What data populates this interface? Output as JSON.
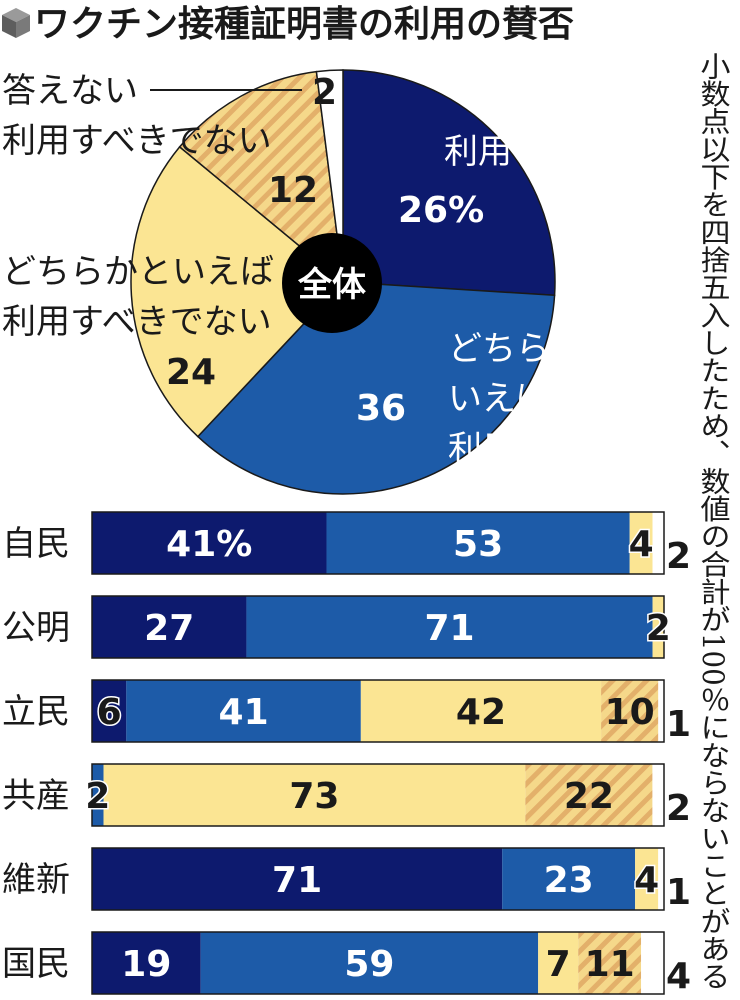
{
  "title": "ワクチン接種証明書の利用の賛否",
  "note": "小数点以下を四捨五入したため、数値の合計が100％にならないことがある",
  "colors": {
    "should_use": "#0d1a6e",
    "rather_should_use": "#1d5ba8",
    "rather_should_not": "#fbe593",
    "should_not": "#f5d88a",
    "should_not_hatch": "#e3b06a",
    "no_answer": "#ffffff",
    "outline": "#1a1a1a"
  },
  "chart_data": [
    {
      "type": "pie",
      "center_label": "全体",
      "unit": "%",
      "slices": [
        {
          "key": "should_use",
          "label": "利用すべきだ",
          "value": 26,
          "display": "26%"
        },
        {
          "key": "rather_should_use",
          "label_lines": [
            "どちらかと",
            "いえば",
            "利用すべきだ"
          ],
          "value": 36,
          "display": "36"
        },
        {
          "key": "rather_should_not",
          "label_lines": [
            "どちらかといえば",
            "利用すべきでない"
          ],
          "value": 24,
          "display": "24"
        },
        {
          "key": "should_not",
          "label": "利用すべきでない",
          "value": 12,
          "display": "12"
        },
        {
          "key": "no_answer",
          "label": "答えない",
          "value": 2,
          "display": "2"
        }
      ]
    },
    {
      "type": "bar",
      "orientation": "horizontal",
      "stacked": true,
      "categories": [
        "自民",
        "公明",
        "立民",
        "共産",
        "維新",
        "国民"
      ],
      "series": [
        {
          "key": "should_use",
          "name": "利用すべきだ",
          "values": [
            41,
            27,
            6,
            0,
            71,
            19
          ]
        },
        {
          "key": "rather_should_use",
          "name": "どちらかといえば利用すべきだ",
          "values": [
            53,
            71,
            41,
            2,
            23,
            59
          ]
        },
        {
          "key": "rather_should_not",
          "name": "どちらかといえば利用すべきでない",
          "values": [
            4,
            2,
            42,
            73,
            4,
            7
          ]
        },
        {
          "key": "should_not",
          "name": "利用すべきでない",
          "values": [
            0,
            0,
            10,
            22,
            0,
            11
          ]
        },
        {
          "key": "no_answer",
          "name": "答えない",
          "values": [
            2,
            0,
            1,
            2,
            1,
            4
          ]
        }
      ],
      "value_labels": [
        [
          "41%",
          "53",
          "4",
          "",
          "2"
        ],
        [
          "27",
          "71",
          "2",
          "",
          ""
        ],
        [
          "6",
          "41",
          "42",
          "10",
          "1"
        ],
        [
          "",
          "2",
          "73",
          "22",
          "2"
        ],
        [
          "71",
          "23",
          "4",
          "",
          "1"
        ],
        [
          "19",
          "59",
          "7",
          "11",
          "4"
        ]
      ]
    }
  ]
}
